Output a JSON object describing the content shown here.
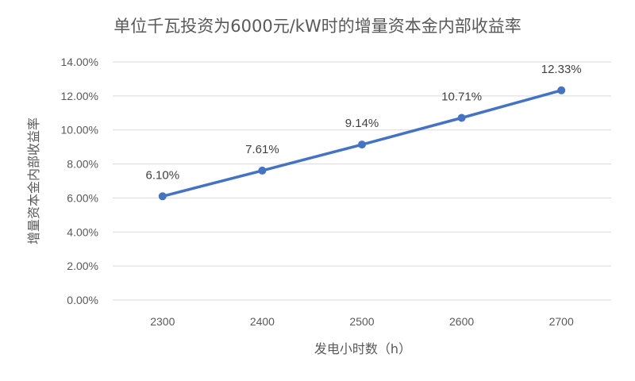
{
  "chart_data": {
    "type": "line",
    "title": "单位千瓦投资为6000元/kW时的增量资本金内部收益率",
    "xlabel": "发电小时数（h）",
    "ylabel": "增量资本金内部收益率",
    "categories": [
      "2300",
      "2400",
      "2500",
      "2600",
      "2700"
    ],
    "series": [
      {
        "values": [
          6.1,
          7.61,
          9.14,
          10.71,
          12.33
        ],
        "labels": [
          "6.10%",
          "7.61%",
          "9.14%",
          "10.71%",
          "12.33%"
        ],
        "color": "#4472c4"
      }
    ],
    "ylim": [
      0,
      14
    ],
    "yticks": [
      "0.00%",
      "2.00%",
      "4.00%",
      "6.00%",
      "8.00%",
      "10.00%",
      "12.00%",
      "14.00%"
    ],
    "ytick_values": [
      0,
      2,
      4,
      6,
      8,
      10,
      12,
      14
    ],
    "grid": true,
    "legend": "none"
  }
}
